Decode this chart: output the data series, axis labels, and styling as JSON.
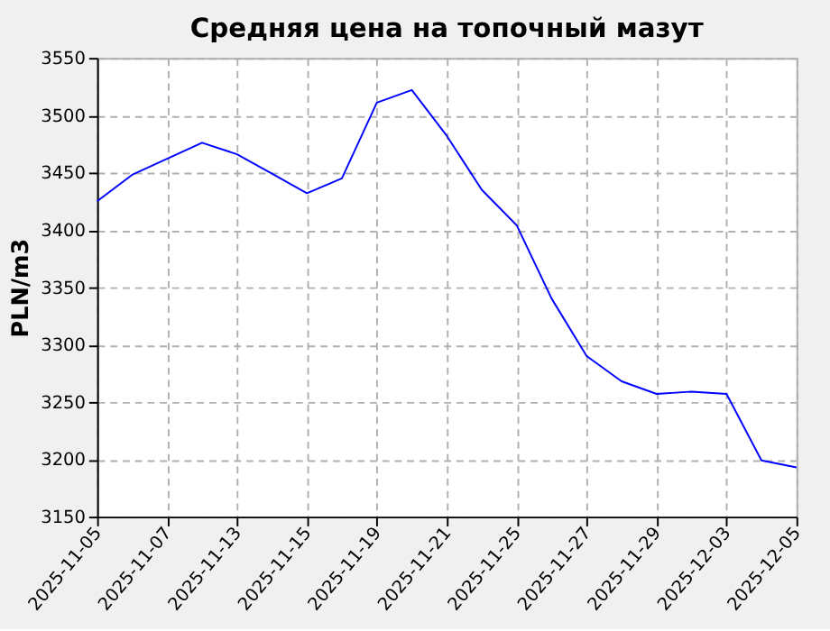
{
  "chart_data": {
    "type": "line",
    "title": "Средняя цена на топочный мазут",
    "ylabel": "PLN/m3",
    "categories": [
      "2025-11-05",
      null,
      "2025-11-07",
      null,
      "2025-11-13",
      null,
      "2025-11-15",
      null,
      "2025-11-19",
      null,
      "2025-11-21",
      null,
      "2025-11-25",
      null,
      "2025-11-27",
      null,
      "2025-11-29",
      null,
      "2025-12-03",
      null,
      "2025-12-05"
    ],
    "series": [
      {
        "color": "#0000ff",
        "values": [
          3425,
          3448,
          3462,
          3476,
          3466,
          3449,
          3432,
          3445,
          3511,
          3522,
          3482,
          3435,
          3404,
          3340,
          3290,
          3268,
          3257,
          3259,
          3257,
          3199,
          3193
        ]
      }
    ],
    "ylim": [
      3150,
      3550
    ],
    "yticks": [
      3150,
      3200,
      3250,
      3300,
      3350,
      3400,
      3450,
      3500,
      3550
    ],
    "grid": true,
    "marker": "none",
    "line_style": "solid"
  }
}
